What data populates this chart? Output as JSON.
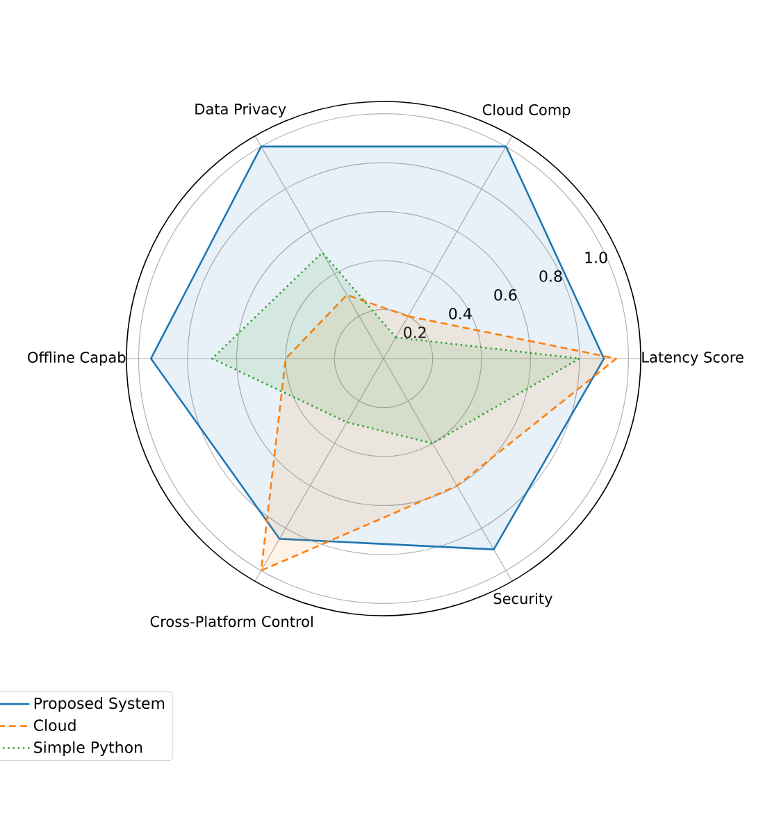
{
  "chart_data": {
    "type": "radar",
    "categories": [
      "Cloud Comp",
      "Latency Score",
      "Security",
      "Cross-Platform Control",
      "Offline Capab",
      "Data Privacy"
    ],
    "series": [
      {
        "name": "Proposed System",
        "color": "#1f77b4",
        "line_style": "solid",
        "values": [
          1.0,
          0.9,
          0.9,
          0.85,
          0.95,
          1.0
        ]
      },
      {
        "name": "Cloud",
        "color": "#ff7f0e",
        "line_style": "dashed",
        "values": [
          0.2,
          0.95,
          0.6,
          1.0,
          0.4,
          0.3
        ]
      },
      {
        "name": "Simple Python",
        "color": "#2ca02c",
        "line_style": "dotted",
        "values": [
          0.1,
          0.8,
          0.4,
          0.3,
          0.7,
          0.5
        ]
      }
    ],
    "ylim": [
      0,
      1.05
    ],
    "yticks": [
      0.2,
      0.4,
      0.6,
      0.8,
      {
        "value": 1.0,
        "label": "1.0"
      }
    ],
    "grid": true,
    "legend": "bottom left"
  }
}
